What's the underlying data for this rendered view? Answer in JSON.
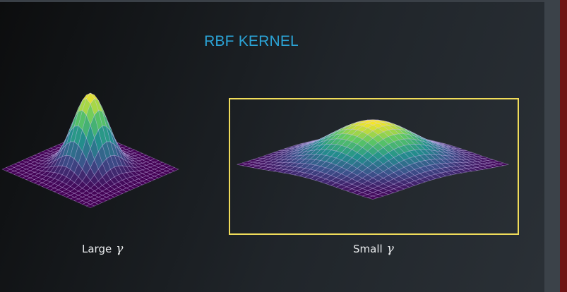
{
  "title": "RBF KERNEL",
  "captions": {
    "large_label": "Large",
    "small_label": "Small",
    "symbol": "γ"
  },
  "colors": {
    "title": "#2ba3d6",
    "highlight_border": "#f0dc5a",
    "colormap": [
      "#440154",
      "#3b528b",
      "#21918c",
      "#5ec962",
      "#fde725"
    ]
  },
  "surfaces": [
    {
      "name": "large-gamma-surface",
      "gamma": "large",
      "highlighted": false
    },
    {
      "name": "small-gamma-surface",
      "gamma": "small",
      "highlighted": true
    }
  ]
}
